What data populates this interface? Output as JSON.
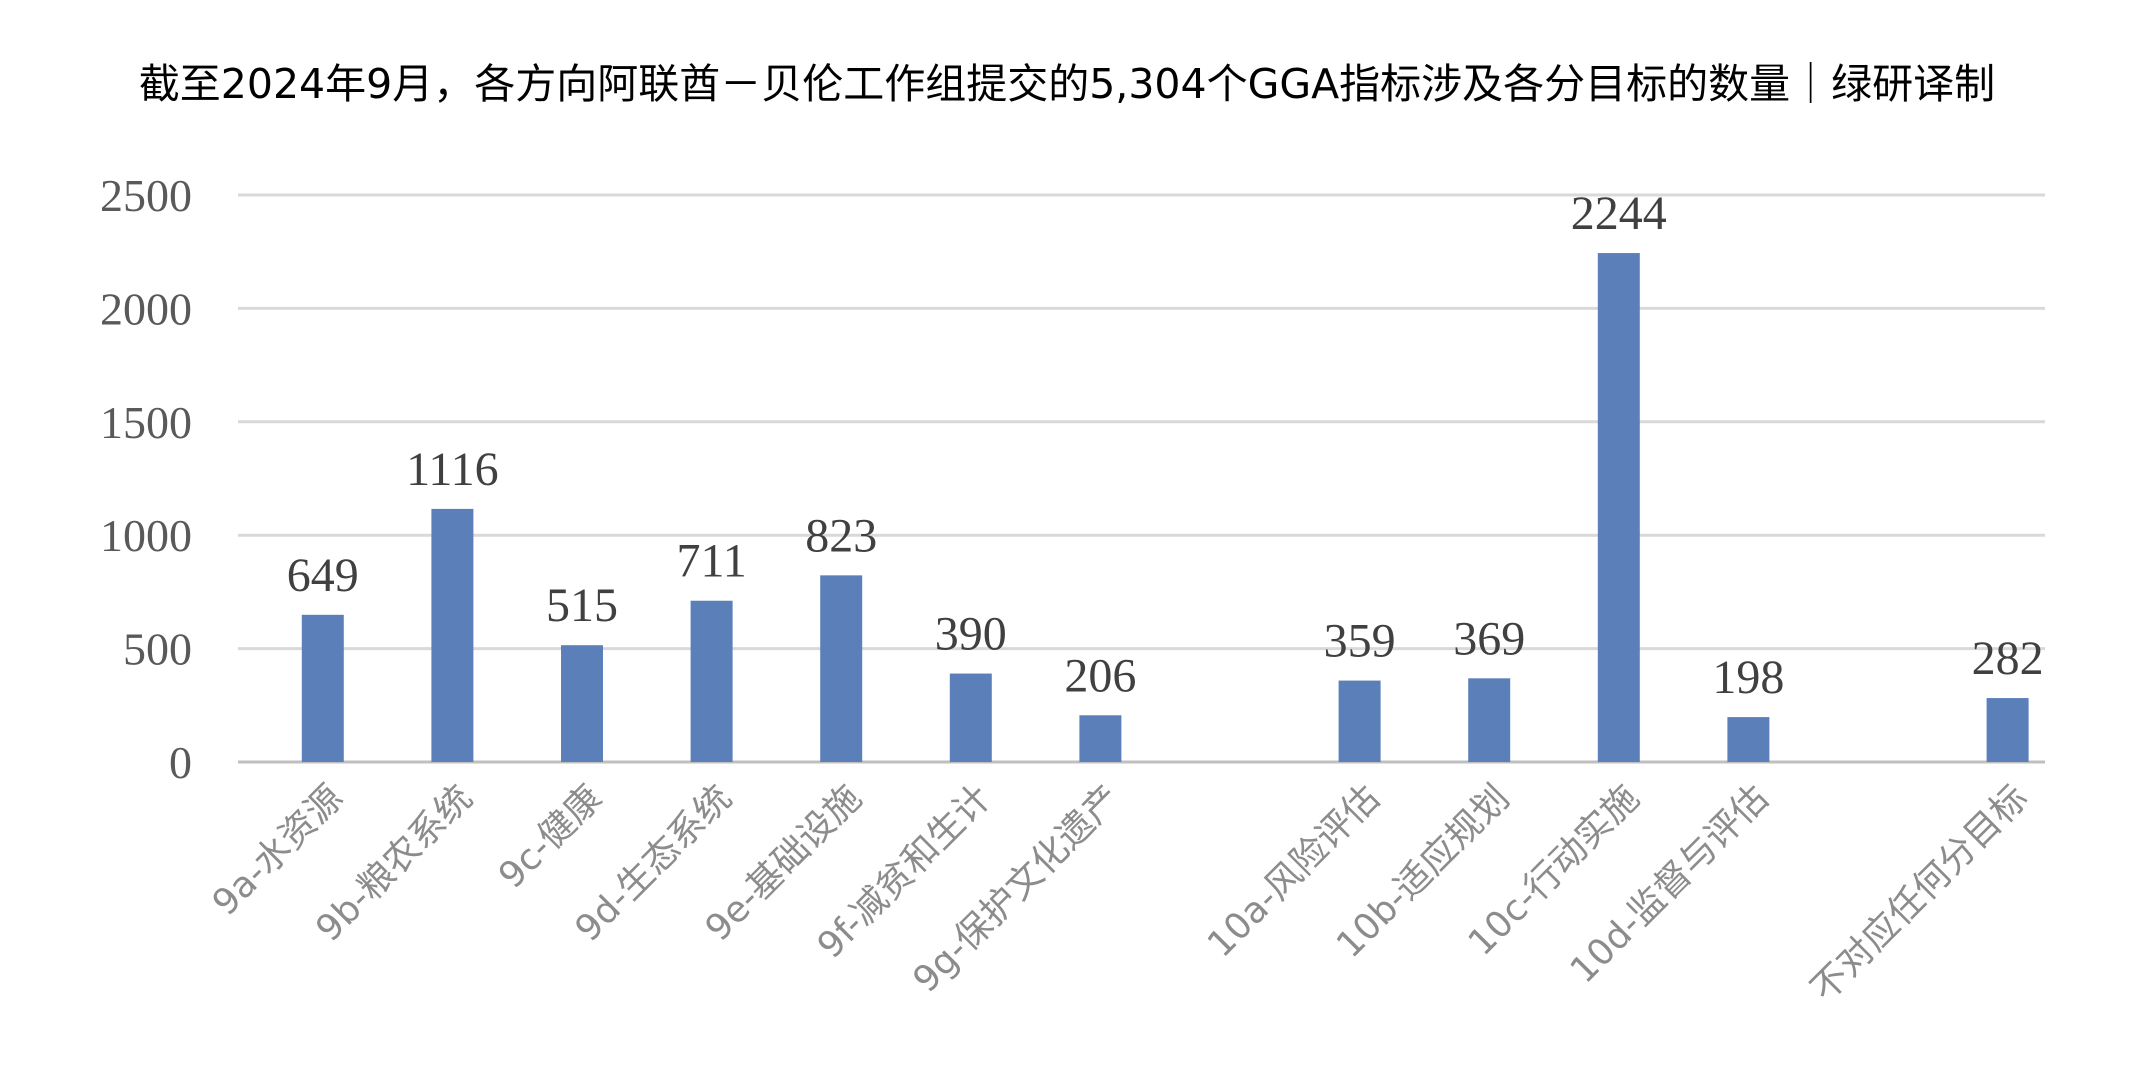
{
  "chart_data": {
    "type": "bar",
    "title": "截至2024年9月，各方向阿联酋－贝伦工作组提交的5,304个GGA指标涉及各分目标的数量｜绿研译制",
    "xlabel": "",
    "ylabel": "",
    "ylim": [
      0,
      2500
    ],
    "yticks": [
      0,
      500,
      1000,
      1500,
      2000,
      2500
    ],
    "grid": true,
    "legend": "none",
    "bar_color": "#5b80b9",
    "categories": [
      "9a-水资源",
      "9b-粮农系统",
      "9c-健康",
      "9d-生态系统",
      "9e-基础设施",
      "9f-减贫和生计",
      "9g-保护文化遗产",
      "",
      "10a-风险评估",
      "10b-适应规划",
      "10c-行动实施",
      "10d-监督与评估",
      "",
      "不对应任何分目标"
    ],
    "values": [
      649,
      1116,
      515,
      711,
      823,
      390,
      206,
      null,
      359,
      369,
      2244,
      198,
      null,
      282
    ]
  }
}
